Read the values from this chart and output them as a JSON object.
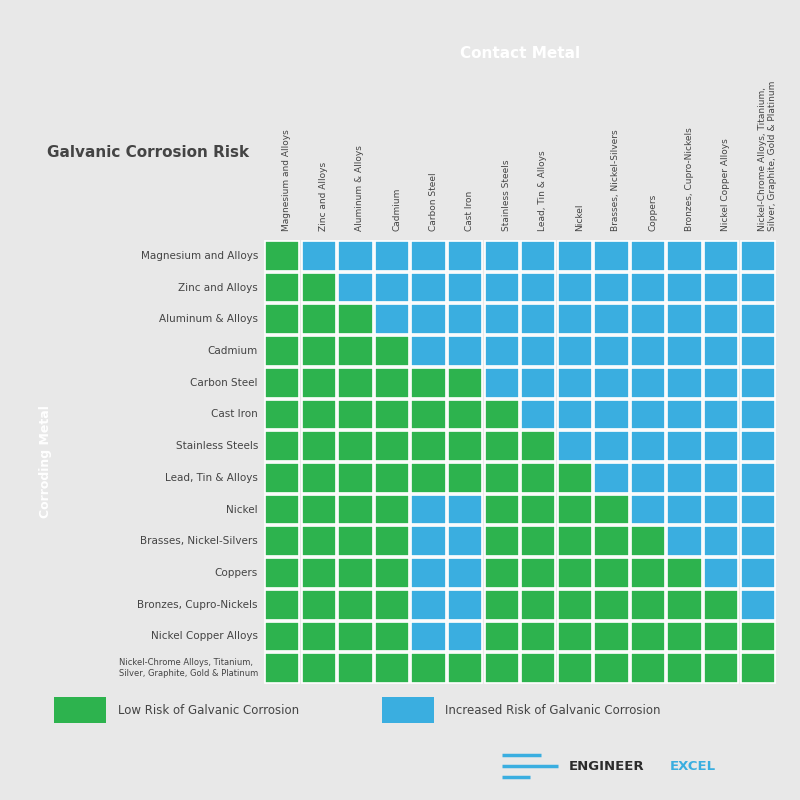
{
  "metals": [
    "Magnesium and Alloys",
    "Zinc and Alloys",
    "Aluminum & Alloys",
    "Cadmium",
    "Carbon Steel",
    "Cast Iron",
    "Stainless Steels",
    "Lead, Tin & Alloys",
    "Nickel",
    "Brasses, Nickel-Silvers",
    "Coppers",
    "Bronzes, Cupro-Nickels",
    "Nickel Copper Alloys",
    "Nickel-Chrome Alloys, Titanium,\nSilver, Graphite, Gold & Platinum"
  ],
  "matrix": [
    [
      1,
      0,
      0,
      0,
      0,
      0,
      0,
      0,
      0,
      0,
      0,
      0,
      0,
      0
    ],
    [
      1,
      1,
      0,
      0,
      0,
      0,
      0,
      0,
      0,
      0,
      0,
      0,
      0,
      0
    ],
    [
      1,
      1,
      1,
      0,
      0,
      0,
      0,
      0,
      0,
      0,
      0,
      0,
      0,
      0
    ],
    [
      1,
      1,
      1,
      1,
      0,
      0,
      0,
      0,
      0,
      0,
      0,
      0,
      0,
      0
    ],
    [
      1,
      1,
      1,
      1,
      1,
      1,
      0,
      0,
      0,
      0,
      0,
      0,
      0,
      0
    ],
    [
      1,
      1,
      1,
      1,
      1,
      1,
      1,
      0,
      0,
      0,
      0,
      0,
      0,
      0
    ],
    [
      1,
      1,
      1,
      1,
      1,
      1,
      1,
      1,
      0,
      0,
      0,
      0,
      0,
      0
    ],
    [
      1,
      1,
      1,
      1,
      1,
      1,
      1,
      1,
      1,
      0,
      0,
      0,
      0,
      0
    ],
    [
      1,
      1,
      1,
      1,
      0,
      0,
      1,
      1,
      1,
      1,
      0,
      0,
      0,
      0
    ],
    [
      1,
      1,
      1,
      1,
      0,
      0,
      1,
      1,
      1,
      1,
      1,
      0,
      0,
      0
    ],
    [
      1,
      1,
      1,
      1,
      0,
      0,
      1,
      1,
      1,
      1,
      1,
      1,
      0,
      0
    ],
    [
      1,
      1,
      1,
      1,
      0,
      0,
      1,
      1,
      1,
      1,
      1,
      1,
      1,
      0
    ],
    [
      1,
      1,
      1,
      1,
      0,
      0,
      1,
      1,
      1,
      1,
      1,
      1,
      1,
      1
    ],
    [
      1,
      1,
      1,
      1,
      1,
      1,
      1,
      1,
      1,
      1,
      1,
      1,
      1,
      1
    ]
  ],
  "green_color": "#2db34e",
  "blue_color": "#3aaee0",
  "header_bg": "#808080",
  "header_text": "#ffffff",
  "sidebar_bg": "#808080",
  "sidebar_text": "#ffffff",
  "bg_color": "#e8e8e8",
  "chart_bg": "#ffffff",
  "grid_color": "#ffffff",
  "title": "Galvanic Corrosion Risk",
  "contact_metal_label": "Contact Metal",
  "corroding_metal_label": "Corroding Metal",
  "legend_green": "Low Risk of Galvanic Corrosion",
  "legend_blue": "Increased Risk of Galvanic Corrosion",
  "logo_text1": "ENGINEER",
  "logo_text2": "EXCEL",
  "logo_line_color": "#3aaee0",
  "label_color": "#444444"
}
